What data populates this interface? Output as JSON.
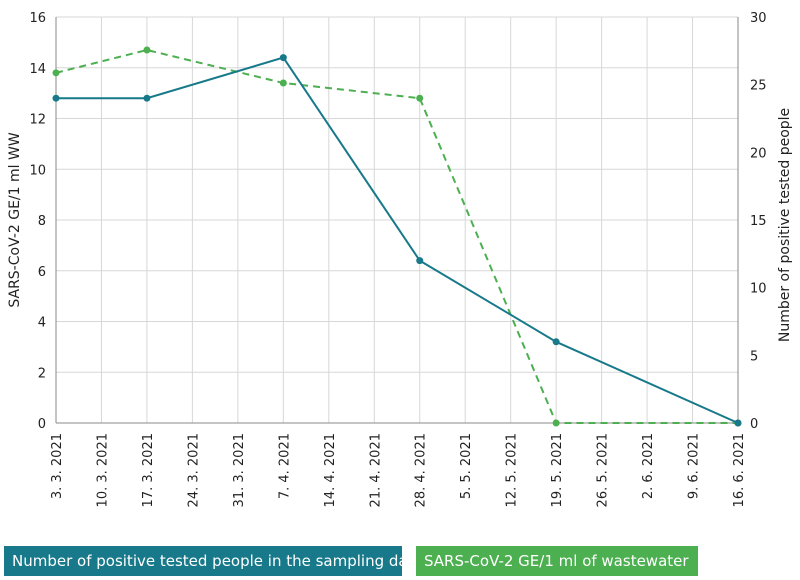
{
  "chart_data": {
    "type": "line",
    "x_ticks": [
      "3. 3. 2021",
      "10. 3. 2021",
      "17. 3. 2021",
      "24. 3. 2021",
      "31. 3. 2021",
      "7. 4. 2021",
      "14. 4. 2021",
      "21. 4. 2021",
      "28. 4. 2021",
      "5. 5. 2021",
      "12. 5. 2021",
      "19. 5. 2021",
      "26. 5. 2021",
      "2. 6. 2021",
      "9. 6. 2021",
      "16. 6. 2021"
    ],
    "y_left": {
      "label": "SARS-CoV-2 GE/1 ml WW",
      "range": [
        0,
        16
      ],
      "ticks": [
        "0",
        "2",
        "4",
        "6",
        "8",
        "10",
        "12",
        "14",
        "16"
      ]
    },
    "y_right": {
      "label": "Number of positive tested people",
      "range": [
        0,
        30
      ],
      "ticks": [
        "0",
        "5",
        "10",
        "15",
        "20",
        "25",
        "30"
      ]
    },
    "grid": true,
    "series": [
      {
        "name": "Number of positive tested people in the sampling day",
        "axis": "right",
        "style": "solid",
        "color": "#17798a",
        "points": [
          {
            "x": "3. 3. 2021",
            "y": 24
          },
          {
            "x": "17. 3. 2021",
            "y": 24
          },
          {
            "x": "7. 4. 2021",
            "y": 27
          },
          {
            "x": "28. 4. 2021",
            "y": 12
          },
          {
            "x": "19. 5. 2021",
            "y": 6
          },
          {
            "x": "16. 6. 2021",
            "y": 0
          }
        ]
      },
      {
        "name": "SARS-CoV-2 GE/1 ml of wastewater",
        "axis": "left",
        "style": "dashed",
        "color": "#4caf50",
        "points": [
          {
            "x": "3. 3. 2021",
            "y": 13.8
          },
          {
            "x": "17. 3. 2021",
            "y": 14.7
          },
          {
            "x": "7. 4. 2021",
            "y": 13.4
          },
          {
            "x": "28. 4. 2021",
            "y": 12.8
          },
          {
            "x": "19. 5. 2021",
            "y": 0
          },
          {
            "x": "16. 6. 2021",
            "y": 0
          }
        ]
      }
    ],
    "legend_position": "bottom"
  }
}
